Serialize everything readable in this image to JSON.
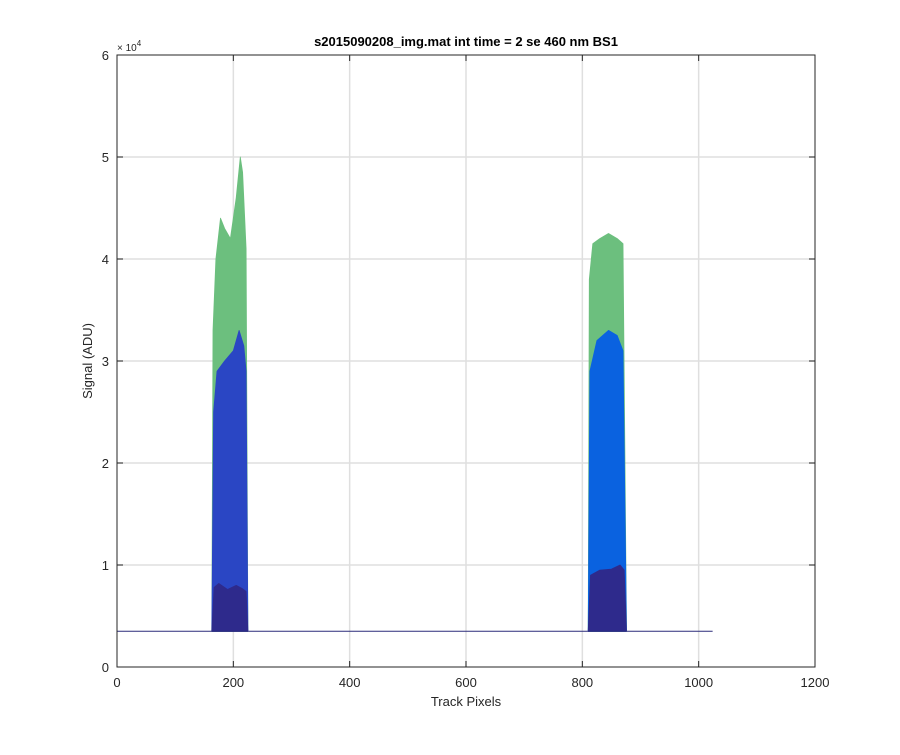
{
  "chart_data": {
    "type": "area",
    "title": "s2015090208_img.mat int time = 2 se  460 nm BS1",
    "xlabel": "Track Pixels",
    "ylabel": "Signal (ADU)",
    "xlim": [
      0,
      1200
    ],
    "ylim": [
      0,
      60000
    ],
    "xticks": [
      0,
      200,
      400,
      600,
      800,
      1000,
      1200
    ],
    "yticks": [
      0,
      1,
      2,
      3,
      4,
      5,
      6
    ],
    "ytick_labels": [
      "0",
      "1",
      "2",
      "3",
      "4",
      "5",
      "6"
    ],
    "y_exponent_label": "× 10",
    "y_exponent_power": "4",
    "grid": true,
    "baseline_value": 3500,
    "baseline_x": [
      0,
      1024
    ],
    "peaks": [
      {
        "x_range": [
          163,
          225
        ],
        "layers": [
          {
            "color": "#2e2a8c",
            "max": [
              [
                163,
                3500
              ],
              [
                167,
                7800
              ],
              [
                175,
                8200
              ],
              [
                190,
                7600
              ],
              [
                205,
                8000
              ],
              [
                215,
                7700
              ],
              [
                222,
                7400
              ],
              [
                225,
                3500
              ]
            ]
          },
          {
            "color": "#2a46c4",
            "max": [
              [
                163,
                3500
              ],
              [
                166,
                25000
              ],
              [
                172,
                29000
              ],
              [
                185,
                30000
              ],
              [
                200,
                31000
              ],
              [
                210,
                33000
              ],
              [
                218,
                31500
              ],
              [
                222,
                29000
              ],
              [
                225,
                3500
              ]
            ]
          },
          {
            "color": "#6cbf7e",
            "max": [
              [
                163,
                3500
              ],
              [
                165,
                33000
              ],
              [
                170,
                40000
              ],
              [
                178,
                44000
              ],
              [
                185,
                43000
              ],
              [
                195,
                42000
              ],
              [
                205,
                46000
              ],
              [
                212,
                50000
              ],
              [
                216,
                48500
              ],
              [
                222,
                41000
              ],
              [
                225,
                3500
              ]
            ]
          }
        ]
      },
      {
        "x_range": [
          810,
          876
        ],
        "layers": [
          {
            "color": "#2e2a8c",
            "max": [
              [
                810,
                3500
              ],
              [
                814,
                9000
              ],
              [
                830,
                9500
              ],
              [
                850,
                9600
              ],
              [
                865,
                10000
              ],
              [
                872,
                9500
              ],
              [
                876,
                3500
              ]
            ]
          },
          {
            "color": "#0a62e0",
            "max": [
              [
                810,
                3500
              ],
              [
                813,
                29000
              ],
              [
                825,
                32000
              ],
              [
                845,
                33000
              ],
              [
                860,
                32500
              ],
              [
                870,
                31000
              ],
              [
                876,
                3500
              ]
            ]
          },
          {
            "color": "#6cbf7e",
            "max": [
              [
                810,
                3500
              ],
              [
                812,
                38000
              ],
              [
                818,
                41500
              ],
              [
                830,
                42000
              ],
              [
                845,
                42500
              ],
              [
                860,
                42000
              ],
              [
                870,
                41500
              ],
              [
                876,
                3500
              ]
            ]
          }
        ]
      }
    ]
  }
}
